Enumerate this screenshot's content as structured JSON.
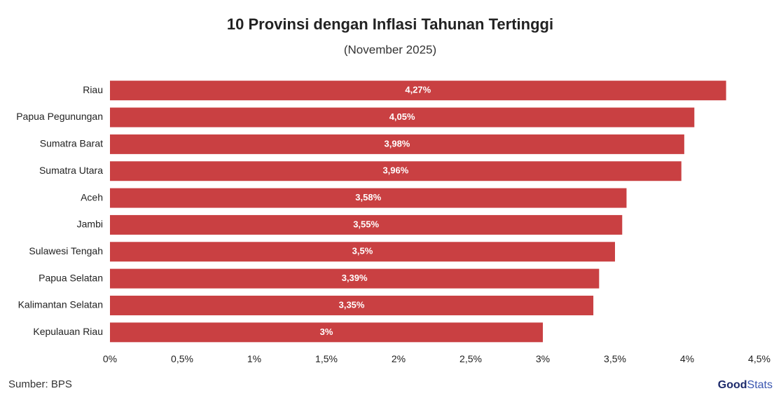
{
  "chart_data": {
    "type": "bar",
    "orientation": "horizontal",
    "title": "10 Provinsi dengan Inflasi Tahunan Tertinggi",
    "subtitle": "(November 2025)",
    "categories": [
      "Riau",
      "Papua Pegunungan",
      "Sumatra Barat",
      "Sumatra Utara",
      "Aceh",
      "Jambi",
      "Sulawesi Tengah",
      "Papua Selatan",
      "Kalimantan Selatan",
      "Kepulauan Riau"
    ],
    "values": [
      4.27,
      4.05,
      3.98,
      3.96,
      3.58,
      3.55,
      3.5,
      3.39,
      3.35,
      3
    ],
    "value_labels": [
      "4,27%",
      "4,05%",
      "3,98%",
      "3,96%",
      "3,58%",
      "3,55%",
      "3,5%",
      "3,39%",
      "3,35%",
      "3%"
    ],
    "color": "#c94042",
    "xlim": [
      0,
      4.5
    ],
    "xticks": [
      {
        "value": 0,
        "label": "0%"
      },
      {
        "value": 0.5,
        "label": "0,5%"
      },
      {
        "value": 1,
        "label": "1%"
      },
      {
        "value": 1.5,
        "label": "1,5%"
      },
      {
        "value": 2,
        "label": "2%"
      },
      {
        "value": 2.5,
        "label": "2,5%"
      },
      {
        "value": 3,
        "label": "3%"
      },
      {
        "value": 3.5,
        "label": "3,5%"
      },
      {
        "value": 4,
        "label": "4%"
      },
      {
        "value": 4.5,
        "label": "4,5%"
      }
    ],
    "grid": false
  },
  "source": "Sumber: BPS",
  "logo": {
    "part1": "Good",
    "part2": "Stats"
  }
}
